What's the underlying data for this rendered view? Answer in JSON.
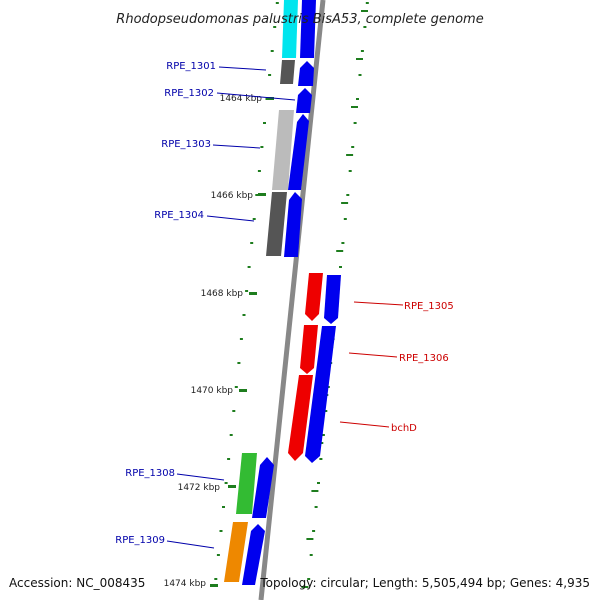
{
  "header": {
    "title": "Rhodopseudomonas palustris BisA53, complete genome"
  },
  "footer": {
    "accession": "Accession: NC_008435",
    "summary": "Topology: circular; Length: 5,505,494 bp; Genes: 4,935"
  },
  "axis": {
    "ticks": [
      "1464 kbp",
      "1466 kbp",
      "1468 kbp",
      "1470 kbp",
      "1472 kbp",
      "1474 kbp"
    ]
  },
  "colors": {
    "backbone": "#888888",
    "tick": "#1e7d1e",
    "left_label": "#0000aa",
    "right_label": "#cc0000",
    "cds": "#0000ee"
  },
  "genes": [
    {
      "label": "RPE_1301",
      "side": "left",
      "color": "#555555"
    },
    {
      "label": "RPE_1302",
      "side": "left",
      "color": "#0000ee"
    },
    {
      "label": "RPE_1303",
      "side": "left",
      "color": "#bbbbbb"
    },
    {
      "label": "RPE_1304",
      "side": "left",
      "color": "#555555"
    },
    {
      "label": "RPE_1305",
      "side": "right",
      "color": "#ee0000"
    },
    {
      "label": "RPE_1306",
      "side": "right",
      "color": "#ee0000"
    },
    {
      "label": "bchD",
      "side": "right",
      "color": "#ee0000"
    },
    {
      "label": "RPE_1308",
      "side": "left",
      "color": "#33bb33"
    },
    {
      "label": "RPE_1309",
      "side": "left",
      "color": "#ee8800"
    }
  ]
}
